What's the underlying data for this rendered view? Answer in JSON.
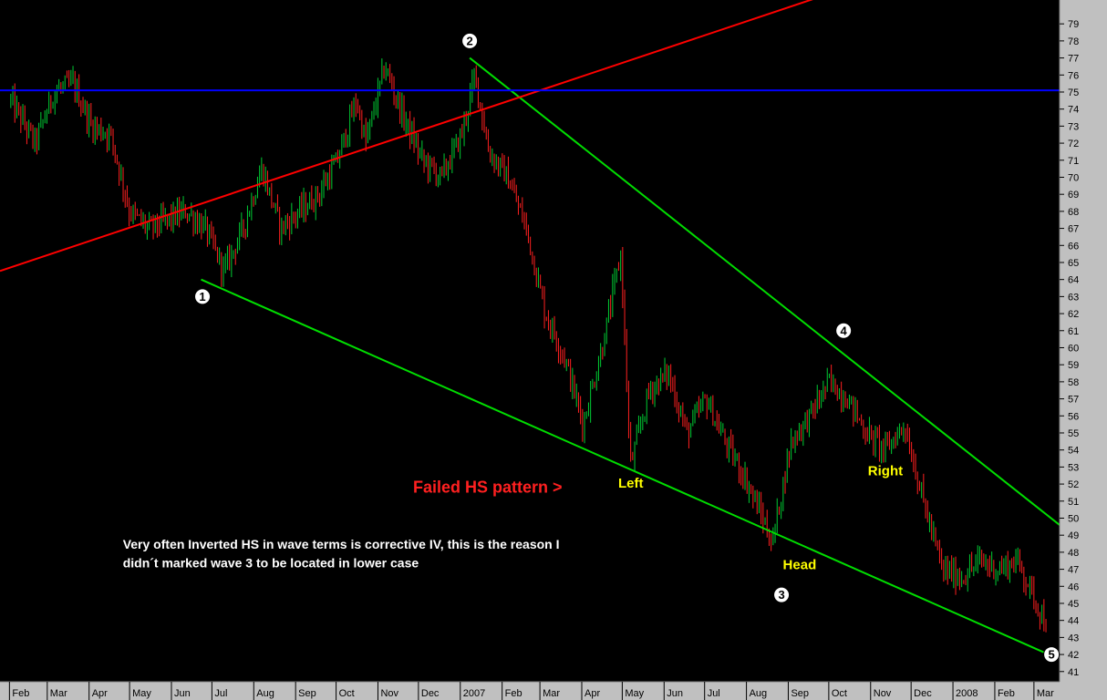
{
  "chart_data": {
    "type": "line",
    "title": "",
    "xlabel": "",
    "ylabel": "",
    "ylim": [
      40.4,
      80.4
    ],
    "x_tick_labels": [
      "Feb",
      "Mar",
      "Apr",
      "May",
      "Jun",
      "Jul",
      "Aug",
      "Sep",
      "Oct",
      "Nov",
      "Dec",
      "2007",
      "Feb",
      "Mar",
      "Apr",
      "May",
      "Jun",
      "Jul",
      "Aug",
      "Sep",
      "Oct",
      "Nov",
      "Dec",
      "2008",
      "Feb",
      "Mar"
    ],
    "y_tick_labels": [
      41,
      42,
      43,
      44,
      45,
      46,
      47,
      48,
      49,
      50,
      51,
      52,
      53,
      54,
      55,
      56,
      57,
      58,
      59,
      60,
      61,
      62,
      63,
      64,
      65,
      66,
      67,
      68,
      69,
      70,
      71,
      72,
      73,
      74,
      75,
      76,
      77,
      78,
      79
    ],
    "series": [
      {
        "color": "#ff2020",
        "color2": "#00cc33",
        "x": [
          "2006-02-02",
          "2006-02-20",
          "2006-03-06",
          "2006-03-20",
          "2006-04-03",
          "2006-04-17",
          "2006-05-01",
          "2006-05-15",
          "2006-05-29",
          "2006-06-12",
          "2006-06-26",
          "2006-07-10",
          "2006-07-24",
          "2006-08-07",
          "2006-08-21",
          "2006-09-04",
          "2006-09-18",
          "2006-10-02",
          "2006-10-16",
          "2006-10-23",
          "2006-11-06",
          "2006-11-20",
          "2006-12-04",
          "2006-12-18",
          "2007-01-02",
          "2007-01-12",
          "2007-01-22",
          "2007-02-05",
          "2007-02-19",
          "2007-03-05",
          "2007-03-19",
          "2007-04-02",
          "2007-04-16",
          "2007-04-30",
          "2007-05-07",
          "2007-05-21",
          "2007-06-04",
          "2007-06-18",
          "2007-07-02",
          "2007-07-16",
          "2007-07-30",
          "2007-08-13",
          "2007-08-20",
          "2007-09-03",
          "2007-09-17",
          "2007-10-01",
          "2007-10-15",
          "2007-10-29",
          "2007-11-12",
          "2007-11-26",
          "2007-12-10",
          "2007-12-24",
          "2008-01-07",
          "2008-01-21",
          "2008-02-04",
          "2008-02-18",
          "2008-03-03",
          "2008-03-10"
        ],
        "values": [
          74.5,
          72.0,
          75.0,
          75.5,
          73.0,
          72.5,
          68.0,
          67.0,
          67.5,
          68.0,
          67.0,
          64.5,
          67.0,
          70.5,
          67.0,
          68.0,
          69.0,
          71.0,
          74.5,
          72.0,
          76.5,
          73.5,
          71.0,
          70.0,
          72.5,
          76.0,
          71.5,
          70.0,
          67.0,
          62.0,
          59.5,
          55.5,
          60.0,
          65.5,
          53.0,
          57.5,
          58.5,
          55.0,
          57.0,
          54.5,
          52.5,
          50.0,
          48.5,
          54.5,
          56.0,
          58.0,
          57.0,
          55.0,
          54.0,
          55.5,
          51.0,
          47.0,
          46.5,
          47.5,
          47.0,
          47.5,
          45.0,
          43.8
        ]
      }
    ],
    "trend_lines": [
      {
        "color": "#00dd00",
        "x": [
          "2006-06-23",
          "2008-03-12"
        ],
        "y": [
          64.0,
          42.0
        ]
      },
      {
        "color": "#00dd00",
        "x": [
          "2007-01-08",
          "2008-03-20"
        ],
        "y": [
          77.0,
          49.6
        ]
      },
      {
        "color": "#ff0000",
        "x": [
          "2006-01-25",
          "2007-10-10"
        ],
        "y": [
          64.5,
          81.0
        ]
      },
      {
        "color": "#0000ff",
        "x": [
          "2006-01-25",
          "2008-03-20"
        ],
        "y": [
          75.1,
          75.1
        ]
      }
    ],
    "wave_labels": [
      {
        "text": "1",
        "x": "2006-06-24",
        "y": 63.0
      },
      {
        "text": "2",
        "x": "2007-01-08",
        "y": 78.0
      },
      {
        "text": "3",
        "x": "2007-08-27",
        "y": 45.5
      },
      {
        "text": "4",
        "x": "2007-10-12",
        "y": 61.0
      },
      {
        "text": "5",
        "x": "2008-03-14",
        "y": 42.0
      }
    ],
    "annotations": [
      {
        "text": "Left",
        "x": "2007-04-28",
        "y": 51.8,
        "color": "#ffff00"
      },
      {
        "text": "Head",
        "x": "2007-08-28",
        "y": 47.0,
        "color": "#ffff00"
      },
      {
        "text": "Right",
        "x": "2007-10-30",
        "y": 52.5,
        "color": "#ffff00"
      },
      {
        "text": "Failed HS pattern >",
        "x": "2006-11-27",
        "y": 51.5,
        "color": "#ff2020"
      },
      {
        "text": "Very often Inverted HS in wave terms is corrective IV, this is the reason I",
        "x": "2006-04-26",
        "y": 48.2,
        "color": "#ffffff"
      },
      {
        "text": "didn´t marked wave 3 to be located in lower case",
        "x": "2006-04-26",
        "y": 47.1,
        "color": "#ffffff"
      }
    ],
    "grid": false,
    "legend": "none"
  }
}
